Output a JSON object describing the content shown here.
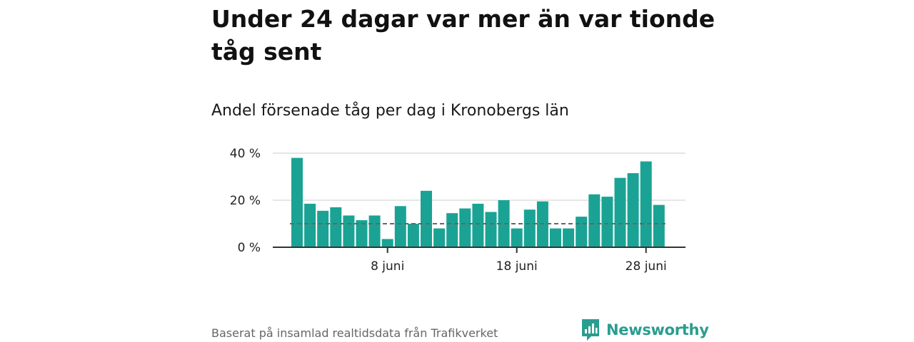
{
  "title": "Under 24 dagar var mer än var tionde tåg sent",
  "subtitle": "Andel försenade tåg per dag i Kronobergs län",
  "source": "Baserat på insamlad realtidsdata från Trafikverket",
  "brand": "Newsworthy",
  "colors": {
    "bar": "#1aa394",
    "reference_line": "#666666",
    "grid": "#dddddd",
    "axis": "#333333",
    "brand": "#2a9d8f"
  },
  "chart_data": {
    "type": "bar",
    "x": [
      "1 juni",
      "2 juni",
      "3 juni",
      "4 juni",
      "5 juni",
      "6 juni",
      "7 juni",
      "8 juni",
      "9 juni",
      "10 juni",
      "11 juni",
      "12 juni",
      "13 juni",
      "14 juni",
      "15 juni",
      "16 juni",
      "17 juni",
      "18 juni",
      "19 juni",
      "20 juni",
      "21 juni",
      "22 juni",
      "23 juni",
      "24 juni",
      "25 juni",
      "26 juni",
      "27 juni",
      "28 juni",
      "29 juni"
    ],
    "values": [
      38,
      18.5,
      15.5,
      17,
      13.5,
      11.5,
      13.5,
      3.5,
      17.5,
      10,
      24,
      8,
      14.5,
      16.5,
      18.5,
      15,
      20,
      8,
      16,
      19.5,
      8,
      8,
      13,
      22.5,
      21.5,
      29.5,
      31.5,
      36.5,
      18
    ],
    "reference_line": 10,
    "ylim": [
      0,
      40
    ],
    "yticks": [
      0,
      20,
      40
    ],
    "ytick_labels": [
      "0 %",
      "20 %",
      "40 %"
    ],
    "xtick_labels": [
      {
        "at": "8 juni",
        "label": "8 juni"
      },
      {
        "at": "18 juni",
        "label": "18 juni"
      },
      {
        "at": "28 juni",
        "label": "28 juni"
      }
    ],
    "grid": true
  }
}
